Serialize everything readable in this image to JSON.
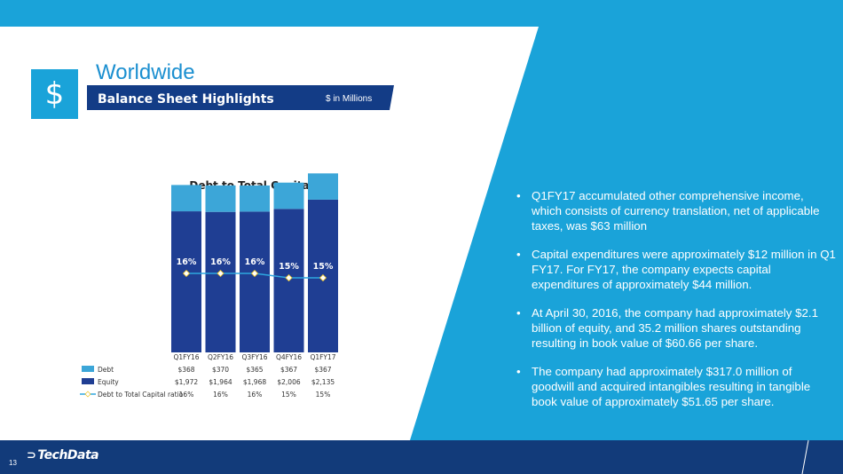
{
  "header": {
    "icon": "dollar-icon",
    "title": "Worldwide",
    "subtitle": "Balance Sheet Highlights",
    "units": "$ in Millions"
  },
  "bullets": [
    "Q1FY17 accumulated other comprehensive income, which consists of currency translation, net of applicable taxes, was $63 million",
    "Capital expenditures were approximately $12 million in Q1 FY17. For FY17, the company expects capital expenditures of approximately $44 million.",
    "At April 30, 2016, the company had approximately $2.1 billion of equity, and 35.2 million shares outstanding resulting in book value of $60.66 per share.",
    "The company had approximately $317.0 million of goodwill and acquired intangibles resulting in tangible book value of approximately $51.65 per share."
  ],
  "footer": {
    "page_number": "13",
    "logo_text": "TechData"
  },
  "colors": {
    "accent_blue": "#1aa3d9",
    "navy": "#123b7a",
    "debt": "#3ca6d8",
    "equity": "#1f3e93",
    "ratio_line": "#2fa7e0"
  },
  "chart_data": {
    "type": "bar",
    "stacked": true,
    "title": "Debt to Total Capital",
    "categories": [
      "Q1FY16",
      "Q2FY16",
      "Q3FY16",
      "Q4FY16",
      "Q1FY17"
    ],
    "series": [
      {
        "name": "Debt",
        "values": [
          368,
          370,
          365,
          367,
          367
        ],
        "labels": [
          "$368",
          "$370",
          "$365",
          "$367",
          "$367"
        ]
      },
      {
        "name": "Equity",
        "values": [
          1972,
          1964,
          1968,
          2006,
          2135
        ],
        "labels": [
          "$1,972",
          "$1,964",
          "$1,968",
          "$2,006",
          "$2,135"
        ]
      }
    ],
    "line_series": {
      "name": "Debt to Total Capital ratio",
      "values": [
        16,
        16,
        16,
        15,
        15
      ],
      "labels": [
        "16%",
        "16%",
        "16%",
        "15%",
        "15%"
      ]
    },
    "legend_placement": "data table below chart",
    "grid": false
  }
}
